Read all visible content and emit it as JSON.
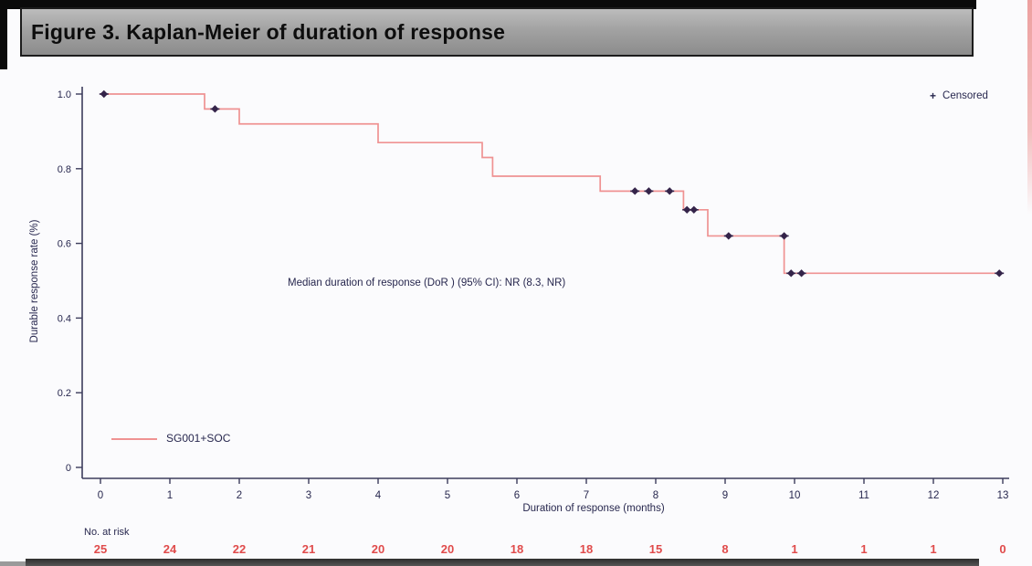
{
  "title_bar": {
    "text": "Figure 3. Kaplan-Meier of duration of response"
  },
  "chart_data": {
    "type": "line",
    "subtype": "kaplan-meier",
    "xlabel": "Duration of response (months)",
    "ylabel": "Durable response rate (%)",
    "xlim": [
      0,
      13
    ],
    "ylim": [
      0,
      1.0
    ],
    "x_ticks": [
      0,
      1,
      2,
      3,
      4,
      5,
      6,
      7,
      8,
      9,
      10,
      11,
      12,
      13
    ],
    "y_ticks": [
      0,
      0.2,
      0.4,
      0.6,
      0.8,
      1.0
    ],
    "y_tick_labels": [
      "0",
      "0.2",
      "0.4",
      "0.6",
      "0.8",
      "1.0"
    ],
    "grid": false,
    "annotation": "Median duration of response (DoR ) (95% CI): NR (8.3, NR)",
    "censored_legend": "Censored",
    "censored_marker": "+",
    "legend_position": "series bottom-left, censored top-right",
    "series": [
      {
        "name": "SG001+SOC",
        "steps": [
          [
            0,
            1.0
          ],
          [
            1.5,
            0.96
          ],
          [
            2.0,
            0.92
          ],
          [
            4.0,
            0.87
          ],
          [
            5.5,
            0.83
          ],
          [
            5.65,
            0.78
          ],
          [
            7.2,
            0.74
          ],
          [
            8.4,
            0.69
          ],
          [
            8.75,
            0.62
          ],
          [
            9.85,
            0.52
          ]
        ],
        "end_x": 12.95,
        "censored": [
          [
            0.05,
            1.0
          ],
          [
            1.65,
            0.96
          ],
          [
            7.7,
            0.74
          ],
          [
            7.9,
            0.74
          ],
          [
            8.2,
            0.74
          ],
          [
            8.45,
            0.69
          ],
          [
            8.55,
            0.69
          ],
          [
            9.05,
            0.62
          ],
          [
            9.85,
            0.62
          ],
          [
            9.95,
            0.52
          ],
          [
            10.1,
            0.52
          ],
          [
            12.95,
            0.52
          ]
        ]
      }
    ]
  },
  "risk_table": {
    "label": "No. at risk",
    "x": [
      0,
      1,
      2,
      3,
      4,
      5,
      6,
      7,
      8,
      9,
      10,
      11,
      12,
      13
    ],
    "values": [
      25,
      24,
      22,
      21,
      20,
      20,
      18,
      18,
      15,
      8,
      1,
      1,
      1,
      0
    ]
  },
  "colors": {
    "curve": "#ef9292",
    "censor_mark": "#35244a",
    "axis": "#3c3c5c",
    "text": "#27274e",
    "risk_numbers": "#e04b4b"
  }
}
